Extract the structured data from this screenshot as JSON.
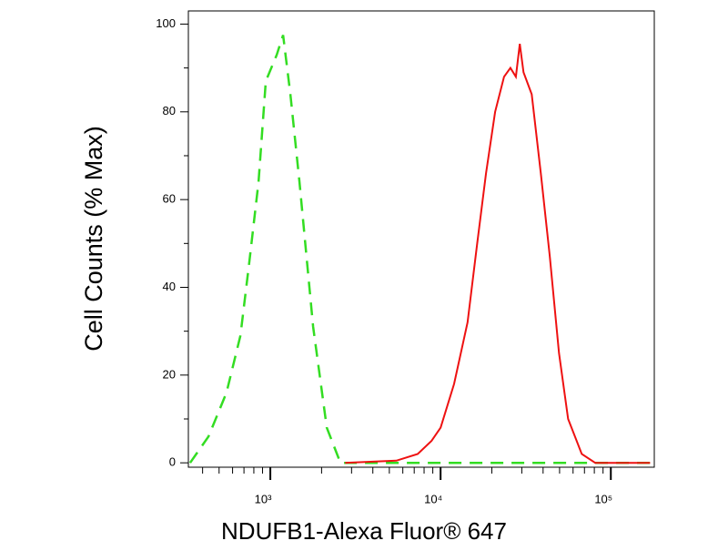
{
  "chart_data": {
    "type": "line",
    "x_label": "NDUFB1-Alexa Fluor® 647",
    "y_label": "Cell Counts (% Max)",
    "xscale": "log",
    "xlim": [
      330,
      180000
    ],
    "ylim": [
      -1,
      103
    ],
    "xticks": [
      {
        "value": 1000,
        "label": "10³"
      },
      {
        "value": 10000,
        "label": "10⁴"
      },
      {
        "value": 100000,
        "label": "10⁵"
      }
    ],
    "xticks_minor": [
      400,
      500,
      600,
      700,
      800,
      900,
      2000,
      3000,
      4000,
      5000,
      6000,
      7000,
      8000,
      9000,
      20000,
      30000,
      40000,
      50000,
      60000,
      70000,
      80000,
      90000
    ],
    "yticks": [
      0,
      20,
      40,
      60,
      80,
      100
    ],
    "yticks_minor": [
      10,
      30,
      50,
      70,
      90
    ],
    "series": [
      {
        "color": "#33dd22",
        "dashed": true,
        "x": [
          338,
          433,
          553,
          667,
          754,
          852,
          940,
          1090,
          1188,
          1311,
          1483,
          1783,
          2146,
          2582,
          12000,
          170000
        ],
        "values": [
          0,
          6,
          16,
          29,
          46,
          64,
          87,
          93,
          97.5,
          84,
          64,
          31,
          8,
          0,
          0,
          0
        ]
      },
      {
        "color": "#ee1111",
        "dashed": false,
        "x": [
          2750,
          5500,
          7340,
          8850,
          10000,
          12000,
          14400,
          16400,
          18500,
          20900,
          23600,
          25700,
          27700,
          29200,
          30700,
          34300,
          38800,
          43800,
          49600,
          56100,
          67500,
          81000,
          170000
        ],
        "values": [
          0,
          0.5,
          2,
          5,
          8,
          18,
          32,
          50,
          66,
          80,
          88,
          90,
          88,
          95.5,
          89,
          84,
          66,
          47,
          25,
          10,
          2,
          0,
          0
        ]
      }
    ]
  }
}
